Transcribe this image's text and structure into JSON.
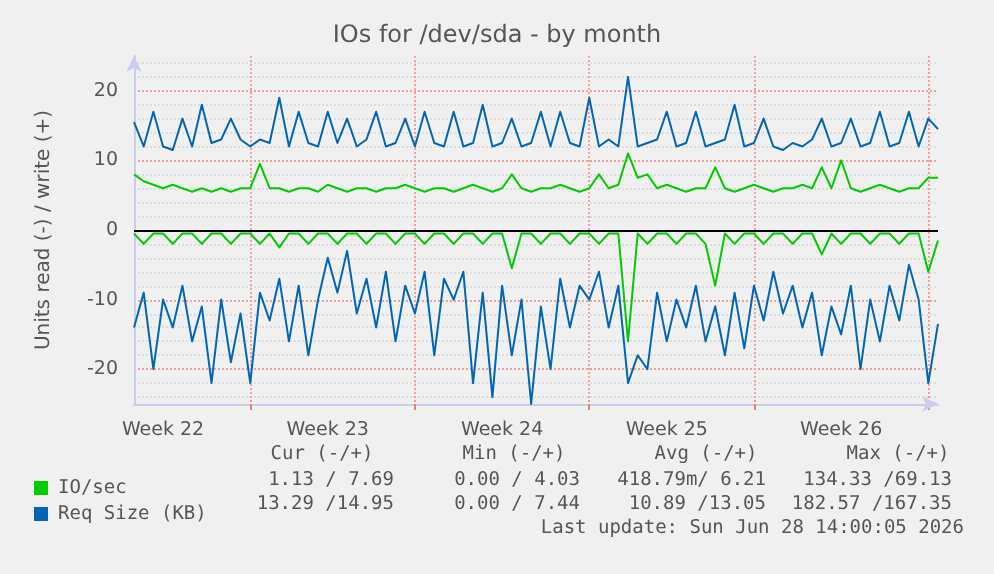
{
  "chart_data": {
    "type": "line",
    "title": "IOs for /dev/sda - by month",
    "ylabel": "Units read (-) / write (+)",
    "categories": [
      null,
      null,
      null,
      "Week 22",
      null,
      null,
      null,
      null,
      null,
      null,
      null,
      null,
      null,
      null,
      null,
      null,
      null,
      null,
      null,
      null,
      "Week 23",
      null,
      null,
      null,
      null,
      null,
      null,
      null,
      null,
      null,
      null,
      null,
      null,
      null,
      null,
      null,
      null,
      null,
      "Week 24",
      null,
      null,
      null,
      null,
      null,
      null,
      null,
      null,
      null,
      null,
      null,
      null,
      null,
      null,
      null,
      null,
      "Week 25",
      null,
      null,
      null,
      null,
      null,
      null,
      null,
      null,
      null,
      null,
      null,
      null,
      null,
      null,
      null,
      null,
      null,
      "Week 26",
      null,
      null,
      null,
      null,
      null,
      null,
      null,
      null,
      null,
      null
    ],
    "series": [
      {
        "name": "IO/sec",
        "color": "#00cc00",
        "values": [
          8,
          7,
          6.5,
          6,
          6.5,
          6,
          5.5,
          6,
          5.5,
          6,
          5.5,
          6,
          6,
          9.5,
          6,
          6,
          5.5,
          6,
          6,
          5.5,
          6.5,
          6,
          5.5,
          6,
          6,
          5.5,
          6,
          6,
          6.5,
          6,
          5.5,
          6,
          6,
          5.5,
          6,
          6.5,
          6,
          5.5,
          6,
          8,
          6,
          5.5,
          6,
          6,
          6.5,
          6,
          5.5,
          6,
          8,
          6,
          6.5,
          11,
          7.5,
          8,
          6,
          6.5,
          6,
          5.5,
          6,
          6,
          9,
          6,
          5.5,
          6,
          6.5,
          6,
          5.5,
          6,
          6,
          6.5,
          6,
          9,
          6,
          10,
          6,
          5.5,
          6,
          6.5,
          6,
          5.5,
          6,
          6,
          7.5,
          7.5
        ]
      },
      {
        "name": "Req Size (KB)",
        "color": "#0066b3",
        "values": [
          15.5,
          12,
          17,
          12,
          11.5,
          16,
          12,
          18,
          12.5,
          13,
          16,
          13,
          12,
          13,
          12.5,
          19,
          12,
          17,
          12.5,
          12,
          17,
          12.5,
          16,
          12,
          13,
          17,
          12,
          12.5,
          16,
          12,
          17,
          12.5,
          12,
          17,
          12,
          12.5,
          18,
          12,
          12.5,
          16,
          12,
          12.5,
          17,
          12,
          17,
          12.5,
          12,
          19,
          12,
          13,
          12,
          22,
          12,
          12.5,
          13,
          17,
          12,
          12.5,
          17,
          12,
          12.5,
          13,
          18,
          12,
          12.5,
          16,
          12,
          11.5,
          12.5,
          12,
          13,
          16,
          12,
          12.5,
          16,
          12,
          12.5,
          17,
          12,
          12.5,
          17,
          12,
          16,
          14.5
        ]
      },
      {
        "color": "#00cc00",
        "values": [
          -0.5,
          -2,
          -0.5,
          -0.5,
          -2,
          -0.5,
          -0.5,
          -2,
          -0.5,
          -0.5,
          -2,
          -0.5,
          -0.5,
          -2,
          -0.5,
          -2.5,
          -0.5,
          -0.5,
          -2,
          -0.5,
          -0.5,
          -2,
          -0.5,
          -0.5,
          -2,
          -0.5,
          -0.5,
          -2,
          -0.5,
          -0.5,
          -2,
          -0.5,
          -0.5,
          -2,
          -0.5,
          -0.5,
          -2,
          -0.5,
          -0.5,
          -5.5,
          -0.5,
          -0.5,
          -2,
          -0.5,
          -0.5,
          -2,
          -0.5,
          -0.5,
          -2,
          -0.5,
          -0.5,
          -16,
          -0.5,
          -2,
          -0.5,
          -0.5,
          -2,
          -0.5,
          -0.5,
          -2,
          -8,
          -0.5,
          -2,
          -0.5,
          -0.5,
          -2,
          -0.5,
          -0.5,
          -2,
          -0.5,
          -0.5,
          -3.5,
          -0.5,
          -2,
          -0.5,
          -0.5,
          -2,
          -0.5,
          -0.5,
          -2,
          -0.5,
          -0.5,
          -6,
          -1.5
        ]
      },
      {
        "color": "#0066b3",
        "values": [
          -14,
          -9,
          -20,
          -10,
          -14,
          -8,
          -16,
          -11,
          -22,
          -10,
          -19,
          -12,
          -22,
          -9,
          -13,
          -7,
          -16,
          -8,
          -18,
          -10,
          -4,
          -9,
          -3,
          -12,
          -7,
          -14,
          -6,
          -16,
          -8,
          -12,
          -6,
          -18,
          -7,
          -10,
          -6,
          -22,
          -9,
          -24,
          -8,
          -18,
          -10,
          -25,
          -11,
          -20,
          -7,
          -14,
          -8,
          -10,
          -6,
          -14,
          -8,
          -22,
          -18,
          -20,
          -9,
          -16,
          -10,
          -14,
          -8,
          -16,
          -11,
          -18,
          -9,
          -17,
          -8,
          -13,
          -6,
          -12,
          -8,
          -14,
          -9,
          -18,
          -11,
          -15,
          -8,
          -20,
          -10,
          -16,
          -8,
          -13,
          -5,
          -10,
          -22,
          -13.5
        ]
      }
    ],
    "ylim": [
      -25,
      25
    ],
    "yticks": [
      -20,
      -10,
      0,
      10,
      20
    ],
    "ref_lines": [
      {
        "axis": "y",
        "value": 0,
        "color": "#000000"
      }
    ],
    "grid": true,
    "legend": "bottom left",
    "marker": "none",
    "line_style": "solid",
    "annotations": [
      "Cur (-/+)",
      "Min (-/+)",
      "Avg (-/+)",
      "Max (-/+)",
      "1.13 / 7.69",
      "0.00 / 4.03",
      "418.79m/ 6.21",
      "134.33 /69.13",
      "13.29 /14.95",
      "0.00 / 7.44",
      "10.89 /13.05",
      "182.57 /167.35",
      "Last update: Sun Jun 28 14:00:05 2026"
    ]
  }
}
